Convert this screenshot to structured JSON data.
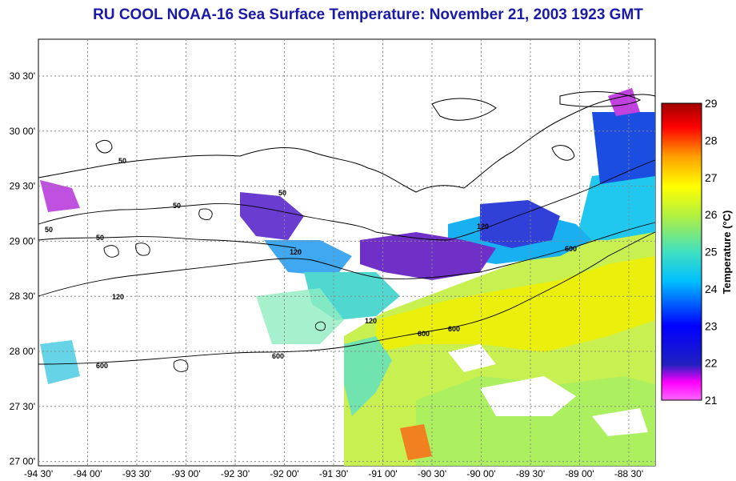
{
  "title": "RU COOL  NOAA-16  Sea Surface Temperature:  November 21, 2003 1923 GMT",
  "x_ticks": [
    "-94  30'",
    "-94  00'",
    "-93  30'",
    "-93  00'",
    "-92  30'",
    "-92  00'",
    "-91  30'",
    "-91  00'",
    "-90  30'",
    "-90  00'",
    "-89  30'",
    "-89  00'",
    "-88  30'"
  ],
  "y_ticks": [
    "30  30'",
    "30  00'",
    "29  30'",
    "29  00'",
    "28  30'",
    "28  00'",
    "27  30'",
    "27  00'"
  ],
  "colorbar": {
    "title": "Temperature (°C)",
    "ticks": [
      "29",
      "28",
      "27",
      "26",
      "25",
      "24",
      "23",
      "22",
      "21"
    ],
    "min": 21,
    "max": 29
  },
  "contour_labels": [
    "50",
    "50",
    "50",
    "50",
    "50",
    "120",
    "120",
    "120",
    "120",
    "600",
    "600",
    "600",
    "600",
    "600"
  ],
  "colors": {
    "title": "#1a1aa8",
    "land_outline": "#000000",
    "grid": "#888888"
  }
}
